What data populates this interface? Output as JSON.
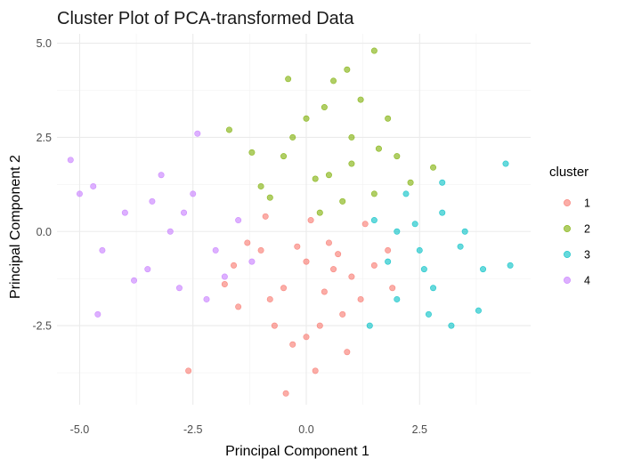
{
  "chart_data": {
    "type": "scatter",
    "title": "Cluster Plot of PCA-transformed Data",
    "xlabel": "Principal Component 1",
    "ylabel": "Principal Component 2",
    "xlim": [
      -5.5,
      4.95
    ],
    "ylim": [
      -4.6,
      5.25
    ],
    "x_ticks": [
      -5.0,
      -2.5,
      0.0,
      2.5
    ],
    "x_tick_labels": [
      "-5.0",
      "-2.5",
      "0.0",
      "2.5"
    ],
    "y_ticks": [
      -2.5,
      0.0,
      2.5,
      5.0
    ],
    "y_tick_labels": [
      "-2.5",
      "0.0",
      "2.5",
      "5.0"
    ],
    "grid": true,
    "legend": {
      "title": "cluster",
      "placement": "right"
    },
    "series": [
      {
        "name": "1",
        "color": "#F8766D",
        "points": [
          [
            0.0,
            -0.8
          ],
          [
            -0.5,
            -1.5
          ],
          [
            0.5,
            -0.3
          ],
          [
            1.0,
            -1.2
          ],
          [
            -1.0,
            -0.5
          ],
          [
            -1.5,
            -2.0
          ],
          [
            0.3,
            -2.5
          ],
          [
            -0.3,
            -3.0
          ],
          [
            0.8,
            -2.2
          ],
          [
            1.5,
            -0.9
          ],
          [
            -0.8,
            -1.8
          ],
          [
            0.0,
            -2.8
          ],
          [
            1.2,
            -1.8
          ],
          [
            -1.3,
            -0.3
          ],
          [
            0.6,
            -1.0
          ],
          [
            -0.2,
            -0.4
          ],
          [
            0.4,
            -1.6
          ],
          [
            1.8,
            -0.5
          ],
          [
            -0.7,
            -2.5
          ],
          [
            0.9,
            -3.2
          ],
          [
            -2.6,
            -3.7
          ],
          [
            -0.45,
            -4.3
          ],
          [
            0.2,
            -3.7
          ],
          [
            1.9,
            -1.5
          ],
          [
            -1.6,
            -0.9
          ],
          [
            0.1,
            0.3
          ],
          [
            -0.9,
            0.4
          ],
          [
            1.3,
            0.2
          ],
          [
            -1.8,
            -1.4
          ],
          [
            0.7,
            -0.6
          ]
        ]
      },
      {
        "name": "2",
        "color": "#7CAE00",
        "points": [
          [
            0.5,
            1.5
          ],
          [
            1.0,
            2.5
          ],
          [
            -0.5,
            2.0
          ],
          [
            1.5,
            1.0
          ],
          [
            0.0,
            3.0
          ],
          [
            2.0,
            2.0
          ],
          [
            0.8,
            0.8
          ],
          [
            -1.0,
            1.2
          ],
          [
            1.2,
            3.5
          ],
          [
            0.3,
            0.5
          ],
          [
            1.8,
            3.0
          ],
          [
            -0.3,
            2.5
          ],
          [
            0.6,
            4.0
          ],
          [
            1.5,
            4.8
          ],
          [
            0.9,
            4.3
          ],
          [
            -0.4,
            4.05
          ],
          [
            -1.7,
            2.7
          ],
          [
            2.3,
            1.3
          ],
          [
            1.0,
            1.8
          ],
          [
            -0.8,
            0.9
          ],
          [
            0.2,
            1.4
          ],
          [
            1.6,
            2.2
          ],
          [
            2.8,
            1.7
          ],
          [
            -1.2,
            2.1
          ],
          [
            0.4,
            3.3
          ]
        ]
      },
      {
        "name": "3",
        "color": "#00BFC4",
        "points": [
          [
            2.0,
            0.0
          ],
          [
            2.5,
            -0.5
          ],
          [
            3.0,
            0.5
          ],
          [
            1.5,
            0.3
          ],
          [
            2.8,
            -1.5
          ],
          [
            3.5,
            0.0
          ],
          [
            2.2,
            1.0
          ],
          [
            1.8,
            -0.8
          ],
          [
            3.2,
            -2.5
          ],
          [
            2.6,
            -1.0
          ],
          [
            4.4,
            1.8
          ],
          [
            4.5,
            -0.9
          ],
          [
            3.8,
            -2.1
          ],
          [
            3.9,
            -1.0
          ],
          [
            2.0,
            -1.8
          ],
          [
            1.4,
            -2.5
          ],
          [
            3.0,
            1.3
          ],
          [
            2.4,
            0.2
          ],
          [
            3.4,
            -0.4
          ],
          [
            2.7,
            -2.2
          ]
        ]
      },
      {
        "name": "4",
        "color": "#C77CFF",
        "points": [
          [
            -3.0,
            0.0
          ],
          [
            -2.0,
            -0.5
          ],
          [
            -4.0,
            0.5
          ],
          [
            -2.5,
            1.0
          ],
          [
            -3.5,
            -1.0
          ],
          [
            -1.5,
            0.3
          ],
          [
            -2.8,
            -1.5
          ],
          [
            -4.5,
            -0.5
          ],
          [
            -3.2,
            1.5
          ],
          [
            -1.8,
            -1.2
          ],
          [
            -5.2,
            1.9
          ],
          [
            -5.0,
            1.0
          ],
          [
            -4.7,
            1.2
          ],
          [
            -4.6,
            -2.2
          ],
          [
            -2.4,
            2.6
          ],
          [
            -2.2,
            -1.8
          ],
          [
            -3.8,
            -1.3
          ],
          [
            -2.7,
            0.5
          ],
          [
            -1.2,
            -0.8
          ],
          [
            -3.4,
            0.8
          ]
        ]
      }
    ]
  }
}
